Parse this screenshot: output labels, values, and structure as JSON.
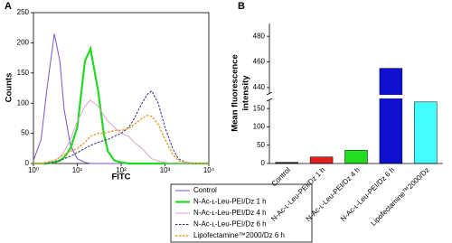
{
  "chart_data": [
    {
      "type": "line",
      "panel_label": "A",
      "xlabel": "FITC",
      "ylabel": "Counts",
      "xscale": "log",
      "x": [
        1,
        1.5,
        2,
        3,
        4,
        5,
        7,
        10,
        15,
        20,
        30,
        40,
        50,
        70,
        100,
        150,
        200,
        300,
        400,
        500,
        700,
        1000,
        1500,
        2000,
        3000,
        5000,
        10000
      ],
      "xlim": [
        1,
        10000
      ],
      "xticks": [
        {
          "value": 1,
          "label": "10⁰"
        },
        {
          "value": 10,
          "label": "10¹"
        },
        {
          "value": 100,
          "label": "10²"
        },
        {
          "value": 1000,
          "label": "10³"
        },
        {
          "value": 10000,
          "label": "10⁴"
        }
      ],
      "ylim": [
        0,
        250
      ],
      "yticks": [
        0,
        50,
        100,
        150,
        200,
        250
      ],
      "series": [
        {
          "name": "Control",
          "color": "#7b52c9",
          "linestyle": "solid",
          "width": 1,
          "values": [
            5,
            40,
            120,
            215,
            170,
            90,
            30,
            8,
            2,
            0,
            0,
            0,
            0,
            0,
            0,
            0,
            0,
            0,
            0,
            0,
            0,
            0,
            0,
            0,
            0,
            0,
            0
          ]
        },
        {
          "name": "N-Ac-ʟ-Leu-PEI/Dz 1 h",
          "color": "#22d822",
          "linestyle": "solid",
          "width": 2.2,
          "values": [
            0,
            0,
            0,
            2,
            5,
            10,
            25,
            60,
            170,
            190,
            120,
            50,
            20,
            5,
            2,
            0,
            0,
            0,
            0,
            0,
            0,
            0,
            0,
            0,
            0,
            0,
            0
          ]
        },
        {
          "name": "N-Ac-ʟ-Leu-PEI/Dz 4 h",
          "color": "#e0a0d8",
          "linestyle": "solid",
          "width": 1,
          "values": [
            0,
            0,
            2,
            5,
            10,
            20,
            40,
            70,
            95,
            105,
            95,
            80,
            70,
            60,
            50,
            45,
            35,
            25,
            15,
            8,
            4,
            2,
            0,
            0,
            0,
            0,
            0
          ]
        },
        {
          "name": "N-Ac-ʟ-Leu-PEI/Dz 6 h",
          "color": "#2a2a7a",
          "linestyle": "dashed",
          "width": 1,
          "values": [
            0,
            0,
            0,
            2,
            5,
            8,
            12,
            18,
            25,
            30,
            35,
            38,
            40,
            45,
            50,
            60,
            75,
            100,
            115,
            120,
            100,
            60,
            25,
            8,
            2,
            0,
            0
          ]
        },
        {
          "name": "Lipofectamine™2000/Dz 6 h",
          "color": "#e8a030",
          "linestyle": "dashed",
          "width": 1.4,
          "values": [
            0,
            0,
            2,
            5,
            10,
            15,
            20,
            25,
            35,
            45,
            50,
            50,
            52,
            55,
            55,
            58,
            65,
            75,
            80,
            78,
            65,
            40,
            15,
            5,
            2,
            0,
            0
          ]
        }
      ]
    },
    {
      "type": "bar",
      "panel_label": "B",
      "ylabel": [
        "Mean fluorescence",
        "intensity"
      ],
      "categories": [
        "Control",
        "N-Ac-ʟ-Leu-PEI/Dz 1 h",
        "N-Ac-ʟ-Leu-PEI/Dz 4 h",
        "N-Ac-ʟ-Leu-PEI/Dz 6 h",
        "Lipofectamine™2000/Dz"
      ],
      "values": [
        3,
        18,
        36,
        455,
        168
      ],
      "colors": [
        "#222222",
        "#e02020",
        "#22dd22",
        "#1010d0",
        "#44ffff"
      ],
      "ylim": [
        0,
        490
      ],
      "y_break": [
        175,
        435
      ],
      "yticks": [
        0,
        50,
        100,
        150,
        440,
        460,
        480
      ]
    }
  ]
}
